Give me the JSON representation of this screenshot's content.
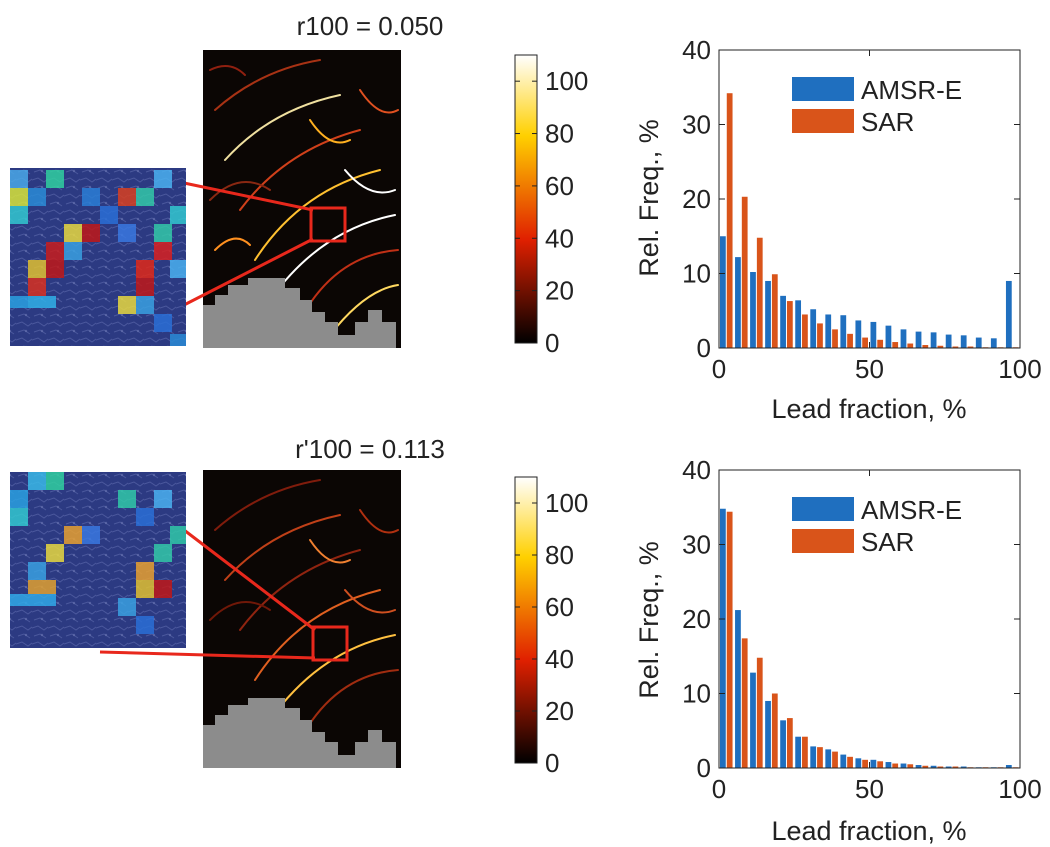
{
  "colors": {
    "amsr": "#1f6fbf",
    "sar": "#d9541a",
    "inset_box": "#e8281c",
    "land": "#8c8c8c",
    "map_background": "#0b0604"
  },
  "chart_data": [
    {
      "type": "heatmap",
      "title": "r100 = 0.050",
      "colorbar": {
        "ticks": [
          0,
          20,
          40,
          60,
          80,
          100
        ],
        "range": [
          0,
          110
        ],
        "colormap": "hot"
      },
      "inset": "sar-amsr-overlay-detail"
    },
    {
      "type": "bar",
      "title": "",
      "xlabel": "Lead fraction, %",
      "ylabel": "Rel. Freq., %",
      "xlim": [
        0,
        100
      ],
      "ylim": [
        0,
        40
      ],
      "xticks": [
        0,
        50,
        100
      ],
      "yticks": [
        0,
        10,
        20,
        30,
        40
      ],
      "legend_position": "top-right",
      "categories": [
        2.5,
        7.5,
        12.5,
        17.5,
        22.5,
        27.5,
        32.5,
        37.5,
        42.5,
        47.5,
        52.5,
        57.5,
        62.5,
        67.5,
        72.5,
        77.5,
        82.5,
        87.5,
        92.5,
        97.5
      ],
      "series": [
        {
          "name": "AMSR-E",
          "values": [
            15,
            12.2,
            10.2,
            9,
            7,
            6.4,
            5.2,
            4.5,
            4.4,
            3.7,
            3.5,
            3,
            2.5,
            2.2,
            2.1,
            1.8,
            1.7,
            1.4,
            1.3,
            9
          ]
        },
        {
          "name": "SAR",
          "values": [
            34.2,
            20.3,
            14.8,
            9.9,
            6.3,
            4.5,
            3.3,
            2.5,
            1.9,
            1.4,
            1.1,
            0.8,
            0.6,
            0.4,
            0.3,
            0.2,
            0.2,
            0.1,
            0.1,
            0.1
          ]
        }
      ]
    },
    {
      "type": "heatmap",
      "title": "r'100 = 0.113",
      "colorbar": {
        "ticks": [
          0,
          20,
          40,
          60,
          80,
          100
        ],
        "range": [
          0,
          110
        ],
        "colormap": "hot"
      },
      "inset": "sar-amsr-overlay-detail"
    },
    {
      "type": "bar",
      "title": "",
      "xlabel": "Lead fraction, %",
      "ylabel": "Rel. Freq., %",
      "xlim": [
        0,
        100
      ],
      "ylim": [
        0,
        40
      ],
      "xticks": [
        0,
        50,
        100
      ],
      "yticks": [
        0,
        10,
        20,
        30,
        40
      ],
      "legend_position": "top-right",
      "categories": [
        2.5,
        7.5,
        12.5,
        17.5,
        22.5,
        27.5,
        32.5,
        37.5,
        42.5,
        47.5,
        52.5,
        57.5,
        62.5,
        67.5,
        72.5,
        77.5,
        82.5,
        87.5,
        92.5,
        97.5
      ],
      "series": [
        {
          "name": "AMSR-E",
          "values": [
            34.8,
            21.2,
            12.8,
            9,
            6.4,
            4.2,
            2.9,
            2.5,
            1.8,
            1.3,
            1.1,
            0.8,
            0.6,
            0.4,
            0.3,
            0.2,
            0.2,
            0.1,
            0.1,
            0.4
          ]
        },
        {
          "name": "SAR",
          "values": [
            34.4,
            17.4,
            14.8,
            10,
            6.7,
            4.2,
            2.8,
            2.2,
            1.5,
            1.1,
            0.9,
            0.6,
            0.5,
            0.3,
            0.2,
            0.2,
            0.1,
            0.1,
            0.1,
            0.1
          ]
        }
      ]
    }
  ]
}
